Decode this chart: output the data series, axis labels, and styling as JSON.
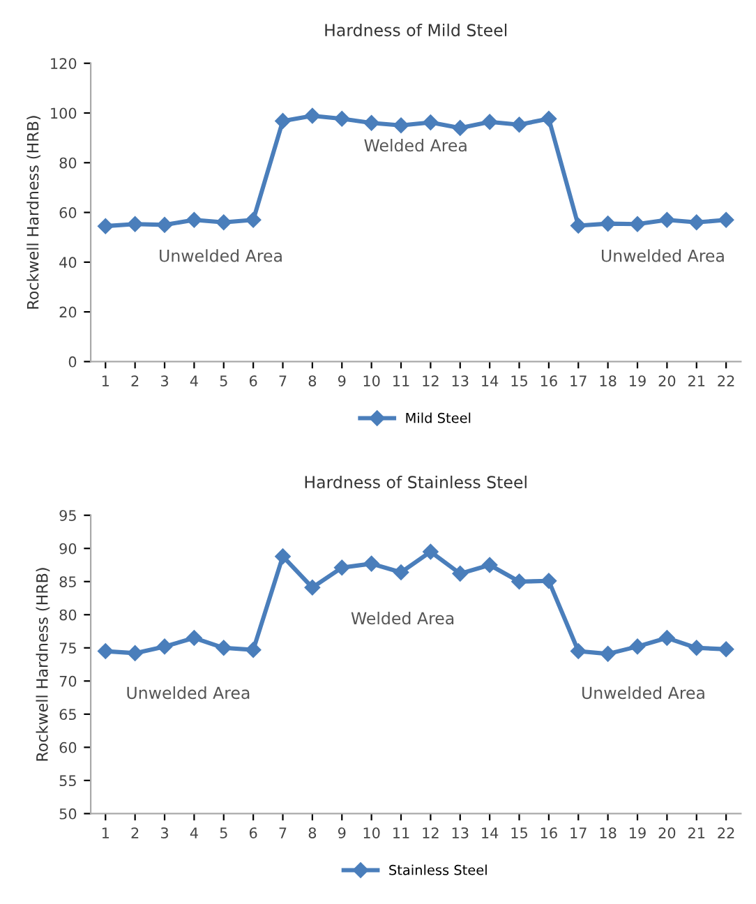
{
  "chart_data": [
    {
      "type": "line",
      "title": "Hardness of Mild Steel",
      "ylabel": "Rockwell Hardness (HRB)",
      "categories": [
        "1",
        "2",
        "3",
        "4",
        "5",
        "6",
        "7",
        "8",
        "9",
        "10",
        "11",
        "12",
        "13",
        "14",
        "15",
        "16",
        "17",
        "18",
        "19",
        "20",
        "21",
        "22"
      ],
      "series": [
        {
          "name": "Mild Steel",
          "color": "#4a7ebb",
          "values": [
            54.5,
            55.3,
            55,
            57,
            56,
            57,
            96.8,
            98.9,
            97.7,
            96,
            95,
            96.2,
            94,
            96.4,
            95.3,
            97.7,
            54.7,
            55.5,
            55.3,
            57,
            56,
            57
          ]
        }
      ],
      "ylim": [
        0,
        120
      ],
      "yticks": [
        0,
        20,
        40,
        60,
        80,
        100,
        120
      ],
      "grid": false,
      "legend": "bottom",
      "marker": "diamond",
      "line_style": "solid",
      "annotations": [
        "Unwelded Area",
        "Welded Area",
        "Unwelded Area"
      ]
    },
    {
      "type": "line",
      "title": "Hardness of Stainless Steel",
      "ylabel": "Rockwell Hardness (HRB)",
      "categories": [
        "1",
        "2",
        "3",
        "4",
        "5",
        "6",
        "7",
        "8",
        "9",
        "10",
        "11",
        "12",
        "13",
        "14",
        "15",
        "16",
        "17",
        "18",
        "19",
        "20",
        "21",
        "22"
      ],
      "series": [
        {
          "name": "Stainless Steel",
          "color": "#4a7ebb",
          "values": [
            74.5,
            74.2,
            75.2,
            76.5,
            75,
            74.7,
            88.8,
            84.1,
            87.1,
            87.7,
            86.4,
            89.5,
            86.2,
            87.5,
            85,
            85.1,
            74.5,
            74.1,
            75.2,
            76.5,
            75,
            74.8
          ]
        }
      ],
      "ylim": [
        50,
        95
      ],
      "yticks": [
        50,
        55,
        60,
        65,
        70,
        75,
        80,
        85,
        90,
        95
      ],
      "grid": false,
      "legend": "bottom",
      "marker": "diamond",
      "line_style": "solid",
      "annotations": [
        "Unwelded Area",
        "Welded Area",
        "Unwelded Area"
      ]
    }
  ]
}
